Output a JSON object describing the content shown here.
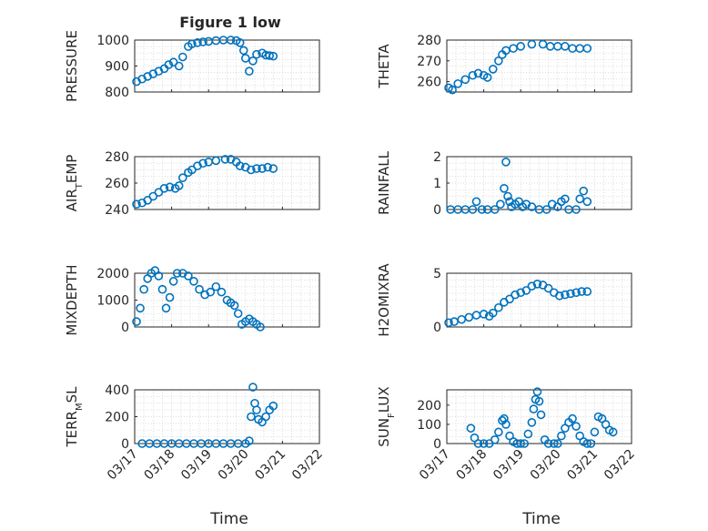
{
  "figure_title": "Figure 1 low",
  "x_date_labels": [
    "03/17",
    "03/18",
    "03/19",
    "03/20",
    "03/21",
    "03/22"
  ],
  "marker_color": "#0072BD",
  "grid": true,
  "chart_data": [
    {
      "type": "scatter",
      "name": "PRESSURE",
      "ylabel": "PRESSURE",
      "title": "Figure 1 low",
      "xlabel": "",
      "ylim": [
        800,
        1000
      ],
      "yticks": [
        800,
        900,
        1000
      ],
      "xlim": [
        0,
        5
      ],
      "xtick_labels": [],
      "points": [
        [
          0.05,
          840
        ],
        [
          0.2,
          850
        ],
        [
          0.35,
          860
        ],
        [
          0.5,
          870
        ],
        [
          0.65,
          880
        ],
        [
          0.8,
          890
        ],
        [
          0.92,
          905
        ],
        [
          1.05,
          915
        ],
        [
          1.2,
          900
        ],
        [
          1.3,
          935
        ],
        [
          1.45,
          975
        ],
        [
          1.55,
          985
        ],
        [
          1.7,
          990
        ],
        [
          1.85,
          993
        ],
        [
          2.0,
          995
        ],
        [
          2.2,
          998
        ],
        [
          2.4,
          1000
        ],
        [
          2.6,
          1000
        ],
        [
          2.75,
          998
        ],
        [
          2.85,
          990
        ],
        [
          2.95,
          960
        ],
        [
          3.0,
          930
        ],
        [
          3.1,
          880
        ],
        [
          3.2,
          920
        ],
        [
          3.3,
          945
        ],
        [
          3.45,
          950
        ],
        [
          3.55,
          942
        ],
        [
          3.65,
          940
        ],
        [
          3.75,
          938
        ]
      ]
    },
    {
      "type": "scatter",
      "name": "THETA",
      "ylabel": "THETA",
      "xlabel": "",
      "ylim": [
        255,
        280
      ],
      "yticks": [
        260,
        270,
        280
      ],
      "xlim": [
        0,
        5
      ],
      "xtick_labels": [],
      "points": [
        [
          0.05,
          257
        ],
        [
          0.15,
          256
        ],
        [
          0.3,
          259
        ],
        [
          0.5,
          261
        ],
        [
          0.7,
          263
        ],
        [
          0.85,
          264
        ],
        [
          1.0,
          263
        ],
        [
          1.1,
          262
        ],
        [
          1.25,
          266
        ],
        [
          1.4,
          270
        ],
        [
          1.5,
          273
        ],
        [
          1.6,
          275
        ],
        [
          1.8,
          276
        ],
        [
          2.0,
          277
        ],
        [
          2.3,
          278
        ],
        [
          2.6,
          278
        ],
        [
          2.8,
          277
        ],
        [
          3.0,
          277
        ],
        [
          3.2,
          277
        ],
        [
          3.4,
          276
        ],
        [
          3.6,
          276
        ],
        [
          3.8,
          276
        ]
      ]
    },
    {
      "type": "scatter",
      "name": "AIR_TEMP",
      "ylabel": "AIR_TEMP",
      "xlabel": "",
      "ylim": [
        240,
        280
      ],
      "yticks": [
        240,
        260,
        280
      ],
      "xlim": [
        0,
        5
      ],
      "xtick_labels": [],
      "points": [
        [
          0.05,
          244
        ],
        [
          0.2,
          245
        ],
        [
          0.35,
          247
        ],
        [
          0.5,
          250
        ],
        [
          0.65,
          253
        ],
        [
          0.8,
          256
        ],
        [
          0.95,
          257
        ],
        [
          1.1,
          256
        ],
        [
          1.2,
          258
        ],
        [
          1.3,
          264
        ],
        [
          1.45,
          268
        ],
        [
          1.55,
          270
        ],
        [
          1.7,
          273
        ],
        [
          1.85,
          275
        ],
        [
          2.0,
          276
        ],
        [
          2.2,
          277
        ],
        [
          2.45,
          278
        ],
        [
          2.6,
          278
        ],
        [
          2.75,
          276
        ],
        [
          2.85,
          273
        ],
        [
          3.0,
          272
        ],
        [
          3.15,
          270
        ],
        [
          3.3,
          271
        ],
        [
          3.45,
          271
        ],
        [
          3.6,
          272
        ],
        [
          3.75,
          271
        ]
      ]
    },
    {
      "type": "scatter",
      "name": "RAINFALL",
      "ylabel": "RAINFALL",
      "xlabel": "",
      "ylim": [
        0,
        2
      ],
      "yticks": [
        0,
        1,
        2
      ],
      "xlim": [
        0,
        5
      ],
      "xtick_labels": [],
      "points": [
        [
          0.1,
          0
        ],
        [
          0.3,
          0
        ],
        [
          0.5,
          0
        ],
        [
          0.7,
          0
        ],
        [
          0.8,
          0.3
        ],
        [
          0.95,
          0
        ],
        [
          1.1,
          0
        ],
        [
          1.3,
          0
        ],
        [
          1.45,
          0.2
        ],
        [
          1.55,
          0.8
        ],
        [
          1.6,
          1.8
        ],
        [
          1.65,
          0.5
        ],
        [
          1.7,
          0.3
        ],
        [
          1.75,
          0.1
        ],
        [
          1.85,
          0.2
        ],
        [
          1.95,
          0.3
        ],
        [
          2.05,
          0.1
        ],
        [
          2.15,
          0.2
        ],
        [
          2.3,
          0.1
        ],
        [
          2.5,
          0
        ],
        [
          2.7,
          0
        ],
        [
          2.85,
          0.2
        ],
        [
          3.0,
          0.1
        ],
        [
          3.1,
          0.3
        ],
        [
          3.2,
          0.4
        ],
        [
          3.3,
          0
        ],
        [
          3.5,
          0
        ],
        [
          3.6,
          0.4
        ],
        [
          3.7,
          0.7
        ],
        [
          3.8,
          0.3
        ]
      ]
    },
    {
      "type": "scatter",
      "name": "MIXDEPTH",
      "ylabel": "MIXDEPTH",
      "xlabel": "",
      "ylim": [
        0,
        2000
      ],
      "yticks": [
        0,
        1000,
        2000
      ],
      "xlim": [
        0,
        5
      ],
      "xtick_labels": [],
      "points": [
        [
          0.05,
          200
        ],
        [
          0.15,
          700
        ],
        [
          0.25,
          1400
        ],
        [
          0.35,
          1800
        ],
        [
          0.45,
          2000
        ],
        [
          0.55,
          2100
        ],
        [
          0.65,
          1900
        ],
        [
          0.75,
          1400
        ],
        [
          0.85,
          700
        ],
        [
          0.95,
          1100
        ],
        [
          1.05,
          1700
        ],
        [
          1.15,
          2000
        ],
        [
          1.3,
          2000
        ],
        [
          1.45,
          1900
        ],
        [
          1.6,
          1700
        ],
        [
          1.75,
          1400
        ],
        [
          1.9,
          1200
        ],
        [
          2.05,
          1300
        ],
        [
          2.2,
          1500
        ],
        [
          2.35,
          1300
        ],
        [
          2.5,
          1000
        ],
        [
          2.6,
          900
        ],
        [
          2.7,
          800
        ],
        [
          2.8,
          500
        ],
        [
          2.9,
          100
        ],
        [
          3.0,
          200
        ],
        [
          3.1,
          300
        ],
        [
          3.2,
          200
        ],
        [
          3.3,
          100
        ],
        [
          3.4,
          0
        ]
      ]
    },
    {
      "type": "scatter",
      "name": "H2OMIXRA",
      "ylabel": "H2OMIXRA",
      "xlabel": "",
      "ylim": [
        0,
        5
      ],
      "yticks": [
        0,
        5
      ],
      "xlim": [
        0,
        5
      ],
      "xtick_labels": [],
      "points": [
        [
          0.05,
          0.4
        ],
        [
          0.2,
          0.5
        ],
        [
          0.4,
          0.7
        ],
        [
          0.6,
          0.9
        ],
        [
          0.8,
          1.1
        ],
        [
          1.0,
          1.2
        ],
        [
          1.15,
          1.0
        ],
        [
          1.25,
          1.3
        ],
        [
          1.4,
          1.8
        ],
        [
          1.55,
          2.3
        ],
        [
          1.7,
          2.6
        ],
        [
          1.85,
          3.0
        ],
        [
          2.0,
          3.2
        ],
        [
          2.15,
          3.4
        ],
        [
          2.3,
          3.8
        ],
        [
          2.45,
          4.0
        ],
        [
          2.6,
          3.9
        ],
        [
          2.75,
          3.6
        ],
        [
          2.9,
          3.2
        ],
        [
          3.05,
          2.9
        ],
        [
          3.2,
          3.0
        ],
        [
          3.35,
          3.1
        ],
        [
          3.5,
          3.2
        ],
        [
          3.65,
          3.3
        ],
        [
          3.8,
          3.3
        ]
      ]
    },
    {
      "type": "scatter",
      "name": "TERR_MSL",
      "ylabel": "TERR_MSL",
      "xlabel": "Time",
      "ylim": [
        0,
        400
      ],
      "yticks": [
        0,
        200,
        400
      ],
      "xlim": [
        0,
        5
      ],
      "xtick_labels": [
        "03/17",
        "03/18",
        "03/19",
        "03/20",
        "03/21",
        "03/22"
      ],
      "points": [
        [
          0.2,
          0
        ],
        [
          0.4,
          0
        ],
        [
          0.6,
          0
        ],
        [
          0.8,
          0
        ],
        [
          1.0,
          0
        ],
        [
          1.2,
          0
        ],
        [
          1.4,
          0
        ],
        [
          1.6,
          0
        ],
        [
          1.8,
          0
        ],
        [
          2.0,
          0
        ],
        [
          2.2,
          0
        ],
        [
          2.4,
          0
        ],
        [
          2.6,
          0
        ],
        [
          2.8,
          0
        ],
        [
          3.0,
          0
        ],
        [
          3.1,
          20
        ],
        [
          3.15,
          200
        ],
        [
          3.2,
          420
        ],
        [
          3.25,
          300
        ],
        [
          3.3,
          250
        ],
        [
          3.35,
          180
        ],
        [
          3.45,
          160
        ],
        [
          3.55,
          200
        ],
        [
          3.65,
          250
        ],
        [
          3.75,
          280
        ]
      ]
    },
    {
      "type": "scatter",
      "name": "SUN_FLUX",
      "ylabel": "SUN_FLUX",
      "xlabel": "Time",
      "ylim": [
        0,
        280
      ],
      "yticks": [
        0,
        100,
        200
      ],
      "xlim": [
        0,
        5
      ],
      "xtick_labels": [
        "03/17",
        "03/18",
        "03/19",
        "03/20",
        "03/21",
        "03/22"
      ],
      "points": [
        [
          0.65,
          80
        ],
        [
          0.75,
          30
        ],
        [
          0.85,
          0
        ],
        [
          1.0,
          0
        ],
        [
          1.15,
          0
        ],
        [
          1.3,
          20
        ],
        [
          1.4,
          60
        ],
        [
          1.5,
          120
        ],
        [
          1.55,
          130
        ],
        [
          1.6,
          100
        ],
        [
          1.7,
          40
        ],
        [
          1.8,
          10
        ],
        [
          1.9,
          0
        ],
        [
          2.0,
          0
        ],
        [
          2.1,
          0
        ],
        [
          2.2,
          50
        ],
        [
          2.3,
          110
        ],
        [
          2.35,
          180
        ],
        [
          2.4,
          230
        ],
        [
          2.45,
          270
        ],
        [
          2.5,
          220
        ],
        [
          2.55,
          150
        ],
        [
          2.65,
          20
        ],
        [
          2.75,
          0
        ],
        [
          2.9,
          0
        ],
        [
          3.0,
          0
        ],
        [
          3.1,
          40
        ],
        [
          3.2,
          80
        ],
        [
          3.3,
          110
        ],
        [
          3.4,
          130
        ],
        [
          3.5,
          90
        ],
        [
          3.6,
          40
        ],
        [
          3.7,
          10
        ],
        [
          3.8,
          0
        ],
        [
          3.9,
          0
        ],
        [
          4.0,
          60
        ],
        [
          4.1,
          140
        ],
        [
          4.2,
          130
        ],
        [
          4.3,
          100
        ],
        [
          4.4,
          70
        ],
        [
          4.5,
          60
        ]
      ]
    }
  ]
}
